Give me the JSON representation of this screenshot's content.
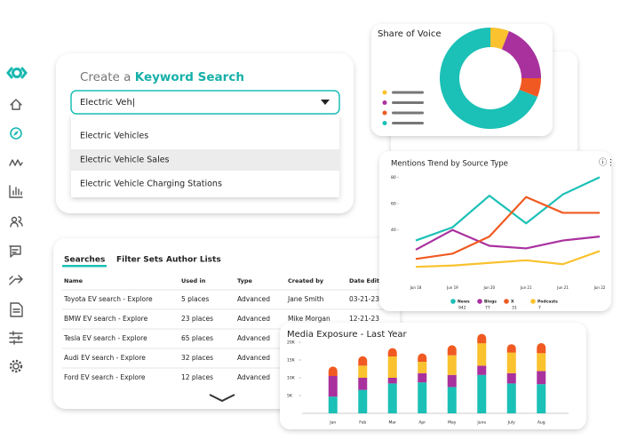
{
  "search": {
    "prefix": "Create a",
    "keyword": "Keyword Search",
    "input": "Electric Veh|",
    "options": [
      "Electric Vehicles",
      "Electric Vehicle Sales",
      "Electric Vehicle Charging Stations"
    ]
  },
  "table": {
    "tabs": [
      "Searches",
      "Filter Sets",
      "Author Lists"
    ],
    "columns": [
      "Name",
      "Used in",
      "Type",
      "Created by",
      "Date Edited"
    ],
    "rows": [
      [
        "Toyota EV search - Explore",
        "5 places",
        "Advanced",
        "Jane Smith",
        "03-21-23"
      ],
      [
        "BMW EV search - Explore",
        "23 places",
        "Advanced",
        "Mike Morgan",
        "12-21-23"
      ],
      [
        "Tesla EV search - Explore",
        "65 places",
        "Advanced"
      ],
      [
        "Audi EV search - Explore",
        "32 places",
        "Advanced"
      ],
      [
        "Ford EV search - Explore",
        "12 places",
        "Advanced"
      ]
    ]
  },
  "chart_data": [
    {
      "type": "pie",
      "title": "Share of Voice",
      "values": [
        6,
        19,
        6,
        69
      ],
      "colors": [
        "#f9c22e",
        "#a9319e",
        "#f05a22",
        "#1bc0b6"
      ]
    },
    {
      "type": "line",
      "title": "Mentions Trend by Source Type",
      "categories": [
        "Jun 18",
        "Jun 19",
        "Jun 20",
        "Jun 21",
        "Jun 21",
        "Jun 22"
      ],
      "ylim": [
        0,
        85
      ],
      "yticks": [
        40,
        60,
        80
      ],
      "series": [
        {
          "name": "News",
          "count": 942,
          "color": "#1bc0b6",
          "values": [
            32,
            42,
            66,
            45,
            67,
            80
          ]
        },
        {
          "name": "Blogs",
          "count": 77,
          "color": "#a9319e",
          "values": [
            25,
            40,
            28,
            26,
            32,
            35
          ]
        },
        {
          "name": "X",
          "count": 31,
          "color": "#f05a22",
          "values": [
            18,
            22,
            35,
            65,
            53,
            53
          ]
        },
        {
          "name": "Podcasts",
          "count": 7,
          "color": "#f9c22e",
          "values": [
            12,
            13,
            15,
            17,
            14,
            24
          ]
        }
      ]
    },
    {
      "type": "bar",
      "stacked": true,
      "title": "Media Exposure - Last Year",
      "categories": [
        "Jan",
        "Feb",
        "Mar",
        "Apr",
        "May",
        "June",
        "July",
        "Aug"
      ],
      "ylim": [
        0,
        21000
      ],
      "yticks": [
        {
          "value": 5000,
          "label": "5K"
        },
        {
          "value": 10000,
          "label": "10K"
        },
        {
          "value": 15000,
          "label": "15K"
        },
        {
          "value": 20000,
          "label": "20K"
        }
      ],
      "series": [
        {
          "color": "#1bc0b6",
          "values": [
            4700,
            6600,
            8400,
            8700,
            7400,
            10800,
            8400,
            8200
          ]
        },
        {
          "color": "#a9319e",
          "values": [
            5800,
            3400,
            1600,
            2600,
            3400,
            2600,
            2900,
            3700
          ]
        },
        {
          "color": "#f9c22e",
          "values": [
            0,
            3400,
            6000,
            3200,
            5500,
            6300,
            5800,
            5000
          ]
        },
        {
          "color": "#f05a22",
          "values": [
            2400,
            2400,
            2100,
            2100,
            2600,
            2400,
            2100,
            2600
          ]
        }
      ]
    }
  ]
}
